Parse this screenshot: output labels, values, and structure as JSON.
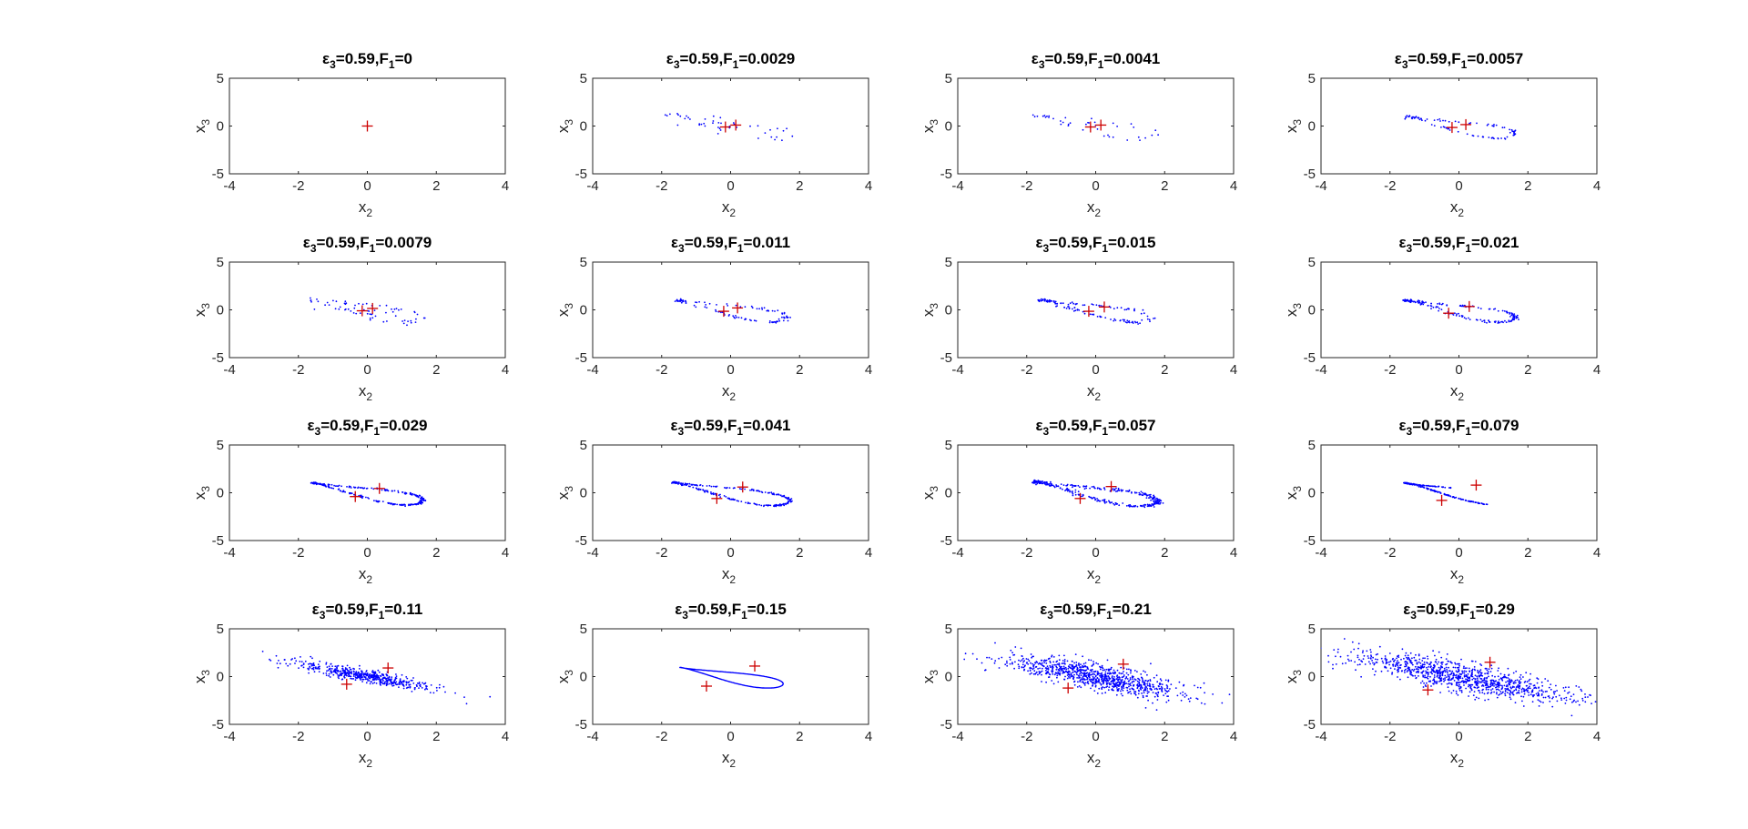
{
  "figure": {
    "background": "#ffffff",
    "point_color": "#0000ff",
    "marker_color": "#cc0000",
    "marker_symbol": "+"
  },
  "chart_data": [
    {
      "type": "scatter",
      "title": {
        "eps": "ε",
        "eps_sub": "3",
        "eps_val": "=0.59,F",
        "f_sub": "1",
        "f_val": "=0"
      },
      "xlabel": {
        "base": "x",
        "sub": "2"
      },
      "ylabel": {
        "base": "x",
        "sub": "3"
      },
      "xlim": [
        -4,
        4
      ],
      "ylim": [
        -5,
        5
      ],
      "xticks": [
        -4,
        -2,
        0,
        2,
        4
      ],
      "yticks": [
        -5,
        0,
        5
      ],
      "attractor": {
        "style": "none",
        "n": 0,
        "spread": 0,
        "lobe": 0
      },
      "markers": [
        [
          0,
          0
        ]
      ]
    },
    {
      "type": "scatter",
      "title": {
        "eps": "ε",
        "eps_sub": "3",
        "eps_val": "=0.59,F",
        "f_sub": "1",
        "f_val": "=0.0029"
      },
      "xlabel": {
        "base": "x",
        "sub": "2"
      },
      "ylabel": {
        "base": "x",
        "sub": "3"
      },
      "xlim": [
        -4,
        4
      ],
      "ylim": [
        -5,
        5
      ],
      "xticks": [
        -4,
        -2,
        0,
        2,
        4
      ],
      "yticks": [
        -5,
        0,
        5
      ],
      "attractor": {
        "style": "sparse",
        "n": 45,
        "spread": 0.35,
        "lobe": 2.0
      },
      "markers": [
        [
          -0.15,
          -0.1
        ],
        [
          0.15,
          0.1
        ]
      ]
    },
    {
      "type": "scatter",
      "title": {
        "eps": "ε",
        "eps_sub": "3",
        "eps_val": "=0.59,F",
        "f_sub": "1",
        "f_val": "=0.0041"
      },
      "xlabel": {
        "base": "x",
        "sub": "2"
      },
      "ylabel": {
        "base": "x",
        "sub": "3"
      },
      "xlim": [
        -4,
        4
      ],
      "ylim": [
        -5,
        5
      ],
      "xticks": [
        -4,
        -2,
        0,
        2,
        4
      ],
      "yticks": [
        -5,
        0,
        5
      ],
      "attractor": {
        "style": "sparse",
        "n": 40,
        "spread": 0.3,
        "lobe": 1.9
      },
      "markers": [
        [
          -0.15,
          -0.1
        ],
        [
          0.15,
          0.1
        ]
      ]
    },
    {
      "type": "scatter",
      "title": {
        "eps": "ε",
        "eps_sub": "3",
        "eps_val": "=0.59,F",
        "f_sub": "1",
        "f_val": "=0.0057"
      },
      "xlabel": {
        "base": "x",
        "sub": "2"
      },
      "ylabel": {
        "base": "x",
        "sub": "3"
      },
      "xlim": [
        -4,
        4
      ],
      "ylim": [
        -5,
        5
      ],
      "xticks": [
        -4,
        -2,
        0,
        2,
        4
      ],
      "yticks": [
        -5,
        0,
        5
      ],
      "attractor": {
        "style": "loop",
        "n": 90,
        "spread": 0.15,
        "lobe": 1.8
      },
      "markers": [
        [
          -0.2,
          -0.15
        ],
        [
          0.2,
          0.15
        ]
      ]
    },
    {
      "type": "scatter",
      "title": {
        "eps": "ε",
        "eps_sub": "3",
        "eps_val": "=0.59,F",
        "f_sub": "1",
        "f_val": "=0.0079"
      },
      "xlabel": {
        "base": "x",
        "sub": "2"
      },
      "ylabel": {
        "base": "x",
        "sub": "3"
      },
      "xlim": [
        -4,
        4
      ],
      "ylim": [
        -5,
        5
      ],
      "xticks": [
        -4,
        -2,
        0,
        2,
        4
      ],
      "yticks": [
        -5,
        0,
        5
      ],
      "attractor": {
        "style": "sparse",
        "n": 70,
        "spread": 0.3,
        "lobe": 1.8
      },
      "markers": [
        [
          -0.15,
          -0.1
        ],
        [
          0.15,
          0.15
        ]
      ]
    },
    {
      "type": "scatter",
      "title": {
        "eps": "ε",
        "eps_sub": "3",
        "eps_val": "=0.59,F",
        "f_sub": "1",
        "f_val": "=0.011"
      },
      "xlabel": {
        "base": "x",
        "sub": "2"
      },
      "ylabel": {
        "base": "x",
        "sub": "3"
      },
      "xlim": [
        -4,
        4
      ],
      "ylim": [
        -5,
        5
      ],
      "xticks": [
        -4,
        -2,
        0,
        2,
        4
      ],
      "yticks": [
        -5,
        0,
        5
      ],
      "attractor": {
        "style": "loop",
        "n": 110,
        "spread": 0.2,
        "lobe": 1.8
      },
      "markers": [
        [
          -0.2,
          -0.15
        ],
        [
          0.2,
          0.2
        ]
      ]
    },
    {
      "type": "scatter",
      "title": {
        "eps": "ε",
        "eps_sub": "3",
        "eps_val": "=0.59,F",
        "f_sub": "1",
        "f_val": "=0.015"
      },
      "xlabel": {
        "base": "x",
        "sub": "2"
      },
      "ylabel": {
        "base": "x",
        "sub": "3"
      },
      "xlim": [
        -4,
        4
      ],
      "ylim": [
        -5,
        5
      ],
      "xticks": [
        -4,
        -2,
        0,
        2,
        4
      ],
      "yticks": [
        -5,
        0,
        5
      ],
      "attractor": {
        "style": "loop",
        "n": 130,
        "spread": 0.2,
        "lobe": 1.8
      },
      "markers": [
        [
          -0.2,
          -0.15
        ],
        [
          0.25,
          0.3
        ]
      ]
    },
    {
      "type": "scatter",
      "title": {
        "eps": "ε",
        "eps_sub": "3",
        "eps_val": "=0.59,F",
        "f_sub": "1",
        "f_val": "=0.021"
      },
      "xlabel": {
        "base": "x",
        "sub": "2"
      },
      "ylabel": {
        "base": "x",
        "sub": "3"
      },
      "xlim": [
        -4,
        4
      ],
      "ylim": [
        -5,
        5
      ],
      "xticks": [
        -4,
        -2,
        0,
        2,
        4
      ],
      "yticks": [
        -5,
        0,
        5
      ],
      "attractor": {
        "style": "loop",
        "n": 180,
        "spread": 0.15,
        "lobe": 1.8
      },
      "markers": [
        [
          -0.3,
          -0.35
        ],
        [
          0.3,
          0.35
        ]
      ]
    },
    {
      "type": "scatter",
      "title": {
        "eps": "ε",
        "eps_sub": "3",
        "eps_val": "=0.59,F",
        "f_sub": "1",
        "f_val": "=0.029"
      },
      "xlabel": {
        "base": "x",
        "sub": "2"
      },
      "ylabel": {
        "base": "x",
        "sub": "3"
      },
      "xlim": [
        -4,
        4
      ],
      "ylim": [
        -5,
        5
      ],
      "xticks": [
        -4,
        -2,
        0,
        2,
        4
      ],
      "yticks": [
        -5,
        0,
        5
      ],
      "attractor": {
        "style": "loop",
        "n": 260,
        "spread": 0.1,
        "lobe": 1.8
      },
      "markers": [
        [
          -0.35,
          -0.4
        ],
        [
          0.35,
          0.45
        ]
      ]
    },
    {
      "type": "scatter",
      "title": {
        "eps": "ε",
        "eps_sub": "3",
        "eps_val": "=0.59,F",
        "f_sub": "1",
        "f_val": "=0.041"
      },
      "xlabel": {
        "base": "x",
        "sub": "2"
      },
      "ylabel": {
        "base": "x",
        "sub": "3"
      },
      "xlim": [
        -4,
        4
      ],
      "ylim": [
        -5,
        5
      ],
      "xticks": [
        -4,
        -2,
        0,
        2,
        4
      ],
      "yticks": [
        -5,
        0,
        5
      ],
      "attractor": {
        "style": "loop",
        "n": 260,
        "spread": 0.1,
        "lobe": 1.9
      },
      "markers": [
        [
          -0.4,
          -0.6
        ],
        [
          0.35,
          0.6
        ]
      ]
    },
    {
      "type": "scatter",
      "title": {
        "eps": "ε",
        "eps_sub": "3",
        "eps_val": "=0.59,F",
        "f_sub": "1",
        "f_val": "=0.057"
      },
      "xlabel": {
        "base": "x",
        "sub": "2"
      },
      "ylabel": {
        "base": "x",
        "sub": "3"
      },
      "xlim": [
        -4,
        4
      ],
      "ylim": [
        -5,
        5
      ],
      "xticks": [
        -4,
        -2,
        0,
        2,
        4
      ],
      "yticks": [
        -5,
        0,
        5
      ],
      "attractor": {
        "style": "loop",
        "n": 320,
        "spread": 0.2,
        "lobe": 2.0
      },
      "markers": [
        [
          -0.45,
          -0.6
        ],
        [
          0.45,
          0.65
        ]
      ]
    },
    {
      "type": "scatter",
      "title": {
        "eps": "ε",
        "eps_sub": "3",
        "eps_val": "=0.59,F",
        "f_sub": "1",
        "f_val": "=0.079"
      },
      "xlabel": {
        "base": "x",
        "sub": "2"
      },
      "ylabel": {
        "base": "x",
        "sub": "3"
      },
      "xlim": [
        -4,
        4
      ],
      "ylim": [
        -5,
        5
      ],
      "xticks": [
        -4,
        -2,
        0,
        2,
        4
      ],
      "yticks": [
        -5,
        0,
        5
      ],
      "attractor": {
        "style": "half",
        "n": 220,
        "spread": 0.05,
        "lobe": 1.8
      },
      "markers": [
        [
          -0.5,
          -0.8
        ],
        [
          0.5,
          0.8
        ]
      ]
    },
    {
      "type": "scatter",
      "title": {
        "eps": "ε",
        "eps_sub": "3",
        "eps_val": "=0.59,F",
        "f_sub": "1",
        "f_val": "=0.11"
      },
      "xlabel": {
        "base": "x",
        "sub": "2"
      },
      "ylabel": {
        "base": "x",
        "sub": "3"
      },
      "xlim": [
        -4,
        4
      ],
      "ylim": [
        -5,
        5
      ],
      "xticks": [
        -4,
        -2,
        0,
        2,
        4
      ],
      "yticks": [
        -5,
        0,
        5
      ],
      "attractor": {
        "style": "cloud",
        "n": 520,
        "spread": 0.35,
        "lobe": 2.4
      },
      "markers": [
        [
          -0.6,
          -0.8
        ],
        [
          0.6,
          0.9
        ]
      ]
    },
    {
      "type": "scatter",
      "title": {
        "eps": "ε",
        "eps_sub": "3",
        "eps_val": "=0.59,F",
        "f_sub": "1",
        "f_val": "=0.15"
      },
      "xlabel": {
        "base": "x",
        "sub": "2"
      },
      "ylabel": {
        "base": "x",
        "sub": "3"
      },
      "xlim": [
        -4,
        4
      ],
      "ylim": [
        -5,
        5
      ],
      "xticks": [
        -4,
        -2,
        0,
        2,
        4
      ],
      "yticks": [
        -5,
        0,
        5
      ],
      "attractor": {
        "style": "curve",
        "n": 0,
        "spread": 0,
        "lobe": 1.7
      },
      "markers": [
        [
          -0.7,
          -1.0
        ],
        [
          0.7,
          1.1
        ]
      ]
    },
    {
      "type": "scatter",
      "title": {
        "eps": "ε",
        "eps_sub": "3",
        "eps_val": "=0.59,F",
        "f_sub": "1",
        "f_val": "=0.21"
      },
      "xlabel": {
        "base": "x",
        "sub": "2"
      },
      "ylabel": {
        "base": "x",
        "sub": "3"
      },
      "xlim": [
        -4,
        4
      ],
      "ylim": [
        -5,
        5
      ],
      "xticks": [
        -4,
        -2,
        0,
        2,
        4
      ],
      "yticks": [
        -5,
        0,
        5
      ],
      "attractor": {
        "style": "cloud",
        "n": 900,
        "spread": 0.7,
        "lobe": 3.2
      },
      "markers": [
        [
          -0.8,
          -1.2
        ],
        [
          0.8,
          1.3
        ]
      ]
    },
    {
      "type": "scatter",
      "title": {
        "eps": "ε",
        "eps_sub": "3",
        "eps_val": "=0.59,F",
        "f_sub": "1",
        "f_val": "=0.29"
      },
      "xlabel": {
        "base": "x",
        "sub": "2"
      },
      "ylabel": {
        "base": "x",
        "sub": "3"
      },
      "xlim": [
        -4,
        4
      ],
      "ylim": [
        -5,
        5
      ],
      "xticks": [
        -4,
        -2,
        0,
        2,
        4
      ],
      "yticks": [
        -5,
        0,
        5
      ],
      "attractor": {
        "style": "cloud",
        "n": 1000,
        "spread": 0.8,
        "lobe": 3.5
      },
      "markers": [
        [
          -0.9,
          -1.4
        ],
        [
          0.9,
          1.5
        ]
      ]
    }
  ]
}
